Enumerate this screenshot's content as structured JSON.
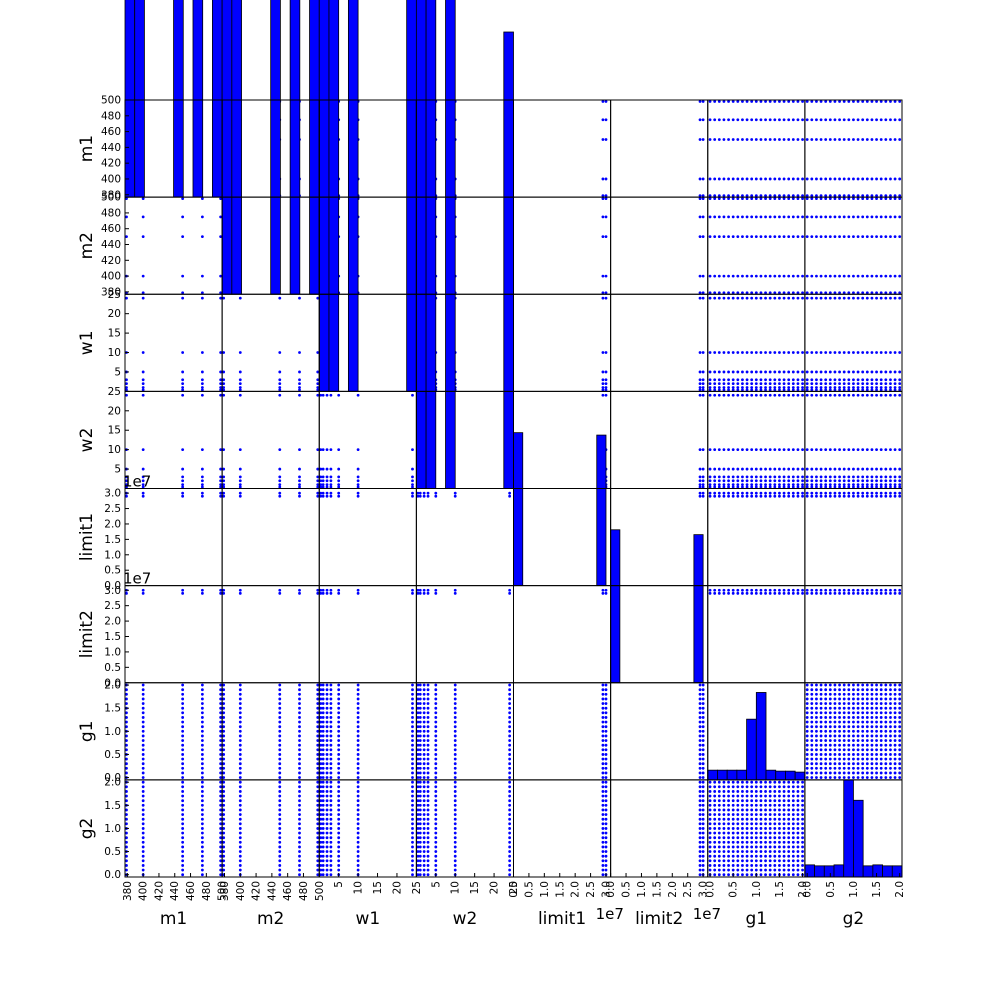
{
  "chart_data": {
    "type": "scatter-matrix",
    "variables": [
      "m1",
      "m2",
      "w1",
      "w2",
      "limit1",
      "limit2",
      "g1",
      "g2"
    ],
    "axes": {
      "m1": {
        "lim": [
          377,
          500
        ],
        "ticks": [
          380,
          400,
          420,
          440,
          460,
          480,
          500
        ],
        "ticklabels": [
          "380",
          "400",
          "420",
          "440",
          "460",
          "480",
          "500"
        ],
        "offset": "",
        "levels": [
          377,
          400,
          450,
          475,
          500
        ]
      },
      "m2": {
        "lim": [
          377,
          500
        ],
        "ticks": [
          380,
          400,
          420,
          440,
          460,
          480,
          500
        ],
        "ticklabels": [
          "380",
          "400",
          "420",
          "440",
          "460",
          "480",
          "500"
        ],
        "offset": "",
        "levels": [
          377,
          400,
          450,
          475,
          500
        ]
      },
      "w1": {
        "lim": [
          0,
          25
        ],
        "ticks": [
          5,
          10,
          15,
          20,
          25
        ],
        "ticklabels": [
          "5",
          "10",
          "15",
          "20",
          "25"
        ],
        "offset": "",
        "levels": [
          0.2,
          1,
          2,
          3,
          5,
          10,
          24
        ]
      },
      "w2": {
        "lim": [
          0,
          25
        ],
        "ticks": [
          5,
          10,
          15,
          20,
          25
        ],
        "ticklabels": [
          "5",
          "10",
          "15",
          "20",
          "25"
        ],
        "offset": "",
        "levels": [
          0.2,
          1,
          2,
          3,
          5,
          10,
          24
        ]
      },
      "limit1": {
        "lim": [
          0,
          31500000
        ],
        "ticks": [
          0,
          5000000,
          10000000,
          15000000,
          20000000,
          25000000,
          30000000
        ],
        "ticklabels": [
          "0.0",
          "0.5",
          "1.0",
          "1.5",
          "2.0",
          "2.5",
          "3.0"
        ],
        "offset": "1e7",
        "levels": [
          29000000,
          30000000
        ]
      },
      "limit2": {
        "lim": [
          0,
          31500000
        ],
        "ticks": [
          0,
          5000000,
          10000000,
          15000000,
          20000000,
          25000000,
          30000000
        ],
        "ticklabels": [
          "0.0",
          "0.5",
          "1.0",
          "1.5",
          "2.0",
          "2.5",
          "3.0"
        ],
        "offset": "1e7",
        "levels": [
          29000000,
          30000000
        ]
      },
      "g1": {
        "lim": [
          -0.05,
          2.05
        ],
        "ticks": [
          0,
          0.5,
          1,
          1.5,
          2
        ],
        "ticklabels": [
          "0.0",
          "0.5",
          "1.0",
          "1.5",
          "2.0"
        ],
        "offset": "",
        "levels": [
          0,
          0.1,
          0.2,
          0.3,
          0.4,
          0.5,
          0.6,
          0.7,
          0.8,
          0.9,
          1.0,
          1.1,
          1.2,
          1.3,
          1.4,
          1.5,
          1.6,
          1.7,
          1.8,
          1.9,
          2.0
        ]
      },
      "g2": {
        "lim": [
          -0.05,
          2.05
        ],
        "ticks": [
          0,
          0.5,
          1,
          1.5,
          2
        ],
        "ticklabels": [
          "0.0",
          "0.5",
          "1.0",
          "1.5",
          "2.0"
        ],
        "offset": "",
        "levels": [
          0,
          0.1,
          0.2,
          0.3,
          0.4,
          0.5,
          0.6,
          0.7,
          0.8,
          0.9,
          1.0,
          1.1,
          1.2,
          1.3,
          1.4,
          1.5,
          1.6,
          1.7,
          1.8,
          1.9,
          2.0
        ]
      }
    },
    "histograms": {
      "m1": {
        "edges": [
          377,
          389.3,
          401.6,
          413.9,
          426.2,
          438.5,
          450.8,
          463.1,
          475.4,
          487.7,
          500
        ],
        "counts": [
          435,
          470,
          0,
          0,
          0,
          484,
          0,
          465,
          0,
          470
        ]
      },
      "m2": {
        "edges": [
          377,
          389.3,
          401.6,
          413.9,
          426.2,
          438.5,
          450.8,
          463.1,
          475.4,
          487.7,
          500
        ],
        "counts": [
          455,
          481,
          0,
          0,
          0,
          489,
          0,
          457,
          0,
          445
        ]
      },
      "w1": {
        "edges": [
          0,
          2.5,
          5,
          7.5,
          10,
          12.5,
          15,
          17.5,
          20,
          22.5,
          25
        ],
        "counts": [
          23.5,
          13.6,
          0,
          13.8,
          0,
          0,
          0,
          0,
          0,
          14.0
        ]
      },
      "w2": {
        "edges": [
          0,
          2.5,
          5,
          7.5,
          10,
          12.5,
          15,
          17.5,
          20,
          22.5,
          25
        ],
        "counts": [
          22.9,
          12.5,
          0,
          12.3,
          0,
          0,
          0,
          0,
          0,
          9.4
        ]
      },
      "limit1": {
        "edges": [
          0,
          3000000,
          6000000,
          9000000,
          12000000,
          15000000,
          18000000,
          21000000,
          24000000,
          27000000,
          30000000
        ],
        "counts": [
          3.15,
          0,
          0,
          0,
          0,
          0,
          0,
          0,
          0,
          3.1
        ]
      },
      "limit2": {
        "edges": [
          0,
          3000000,
          6000000,
          9000000,
          12000000,
          15000000,
          18000000,
          21000000,
          24000000,
          27000000,
          30000000
        ],
        "counts": [
          3.15,
          0,
          0,
          0,
          0,
          0,
          0,
          0,
          0,
          3.05
        ]
      },
      "g1": {
        "edges": [
          -0.05,
          0.16,
          0.37,
          0.58,
          0.79,
          1.0,
          1.21,
          1.42,
          1.63,
          1.84,
          2.05
        ],
        "counts": [
          0.2,
          0.2,
          0.2,
          0.2,
          1.25,
          1.8,
          0.2,
          0.18,
          0.18,
          0.16
        ]
      },
      "g2": {
        "edges": [
          -0.05,
          0.16,
          0.37,
          0.58,
          0.79,
          1.0,
          1.21,
          1.42,
          1.63,
          1.84,
          2.05
        ],
        "counts": [
          0.25,
          0.23,
          0.23,
          0.25,
          2.0,
          1.58,
          0.23,
          0.25,
          0.23,
          0.23
        ]
      }
    },
    "hist_ylim": [
      0,
      2.0
    ]
  },
  "colors": {
    "points": "#0000ff",
    "bars": "#0000ff",
    "bar_edge": "#000000",
    "frame": "#000000",
    "text": "#000000"
  }
}
